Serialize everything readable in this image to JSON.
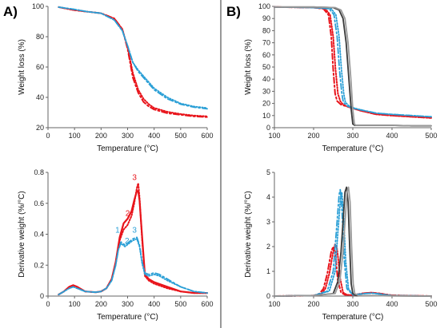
{
  "panels": [
    {
      "label": "A)"
    },
    {
      "label": "B)"
    }
  ],
  "colors": {
    "red": "#e8141b",
    "blue": "#2a9fd6",
    "black": "#3a3a3a",
    "grey": "#9a9a9a"
  },
  "chart_data": [
    {
      "type": "line",
      "panel": "A)",
      "xlabel": "Temperature (°C)",
      "ylabel": "Weight loss (%)",
      "xlim": [
        0,
        600
      ],
      "ylim": [
        20,
        100
      ],
      "xticks": [
        0,
        100,
        200,
        300,
        400,
        500,
        600
      ],
      "yticks": [
        20,
        40,
        60,
        80,
        100
      ],
      "series": [
        {
          "style": "red-dashdot",
          "x": [
            40,
            100,
            150,
            200,
            250,
            280,
            300,
            320,
            340,
            360,
            380,
            400,
            450,
            500,
            550,
            600
          ],
          "y": [
            99.5,
            97.5,
            96.5,
            95.5,
            92,
            85,
            72,
            53,
            43,
            37,
            34,
            32,
            29.5,
            28.5,
            27.5,
            27
          ]
        },
        {
          "style": "red-dotted",
          "x": [
            40,
            100,
            150,
            200,
            250,
            280,
            300,
            320,
            340,
            360,
            380,
            400,
            450,
            500,
            550,
            600
          ],
          "y": [
            99.5,
            97.5,
            96.5,
            95.5,
            92,
            85,
            73,
            56,
            45,
            39,
            35.5,
            33,
            30.5,
            29,
            28,
            27.5
          ]
        },
        {
          "style": "blue-dashdot",
          "x": [
            40,
            100,
            150,
            200,
            250,
            280,
            300,
            320,
            340,
            360,
            380,
            400,
            450,
            500,
            550,
            600
          ],
          "y": [
            99.5,
            98,
            96.5,
            95.5,
            91,
            84,
            74,
            63,
            57,
            53,
            49,
            45,
            39,
            35.5,
            33.5,
            32.5
          ]
        },
        {
          "style": "blue-dotted",
          "x": [
            40,
            100,
            150,
            200,
            250,
            280,
            300,
            320,
            340,
            360,
            380,
            400,
            450,
            500,
            550,
            600
          ],
          "y": [
            99.5,
            98,
            96.5,
            95.5,
            91,
            84,
            74,
            63,
            58,
            54,
            50,
            46,
            40,
            36,
            34,
            33
          ]
        }
      ]
    },
    {
      "type": "line",
      "panel": "A)",
      "xlabel": "Temperature (°C)",
      "ylabel": "Derivative weight (%/°C)",
      "xlim": [
        0,
        600
      ],
      "ylim": [
        0,
        0.8
      ],
      "xticks": [
        0,
        100,
        200,
        300,
        400,
        500,
        600
      ],
      "yticks": [
        0,
        0.2,
        0.4,
        0.6,
        0.8
      ],
      "annotations": [
        {
          "text": "1",
          "x": 262,
          "y": 0.41,
          "color": "blue"
        },
        {
          "text": "2",
          "x": 298,
          "y": 0.34,
          "color": "blue"
        },
        {
          "text": "3",
          "x": 326,
          "y": 0.41,
          "color": "blue"
        },
        {
          "text": "2",
          "x": 300,
          "y": 0.52,
          "color": "red"
        },
        {
          "text": "3",
          "x": 326,
          "y": 0.75,
          "color": "red"
        }
      ],
      "series": [
        {
          "style": "red-solid",
          "x": [
            40,
            60,
            80,
            95,
            110,
            140,
            180,
            200,
            220,
            240,
            255,
            270,
            285,
            300,
            315,
            325,
            335,
            340,
            345,
            355,
            365,
            380,
            400,
            450,
            500,
            550,
            600
          ],
          "y": [
            0.01,
            0.03,
            0.06,
            0.07,
            0.06,
            0.03,
            0.025,
            0.03,
            0.05,
            0.11,
            0.22,
            0.38,
            0.47,
            0.5,
            0.55,
            0.62,
            0.68,
            0.68,
            0.62,
            0.38,
            0.14,
            0.11,
            0.09,
            0.06,
            0.03,
            0.02,
            0.02
          ]
        },
        {
          "style": "red-dotted",
          "x": [
            40,
            60,
            80,
            95,
            110,
            140,
            180,
            200,
            220,
            240,
            255,
            270,
            285,
            300,
            315,
            325,
            335,
            340,
            345,
            355,
            365,
            380,
            400,
            450,
            500,
            550,
            600
          ],
          "y": [
            0.01,
            0.03,
            0.06,
            0.07,
            0.06,
            0.03,
            0.025,
            0.03,
            0.05,
            0.11,
            0.21,
            0.36,
            0.43,
            0.46,
            0.52,
            0.6,
            0.7,
            0.73,
            0.64,
            0.36,
            0.13,
            0.1,
            0.08,
            0.05,
            0.03,
            0.02,
            0.02
          ]
        },
        {
          "style": "blue-dashdot",
          "x": [
            40,
            60,
            80,
            95,
            110,
            140,
            180,
            200,
            220,
            240,
            255,
            265,
            275,
            290,
            305,
            320,
            335,
            345,
            355,
            365,
            380,
            400,
            420,
            450,
            500,
            550,
            600
          ],
          "y": [
            0.01,
            0.03,
            0.05,
            0.06,
            0.05,
            0.03,
            0.025,
            0.03,
            0.05,
            0.1,
            0.2,
            0.3,
            0.35,
            0.33,
            0.35,
            0.37,
            0.38,
            0.33,
            0.22,
            0.15,
            0.14,
            0.15,
            0.14,
            0.11,
            0.06,
            0.03,
            0.02
          ]
        },
        {
          "style": "blue-dotted",
          "x": [
            40,
            60,
            80,
            95,
            110,
            140,
            180,
            200,
            220,
            240,
            255,
            265,
            275,
            290,
            305,
            320,
            335,
            345,
            355,
            365,
            380,
            400,
            420,
            450,
            500,
            550,
            600
          ],
          "y": [
            0.01,
            0.03,
            0.05,
            0.06,
            0.05,
            0.03,
            0.025,
            0.03,
            0.05,
            0.1,
            0.2,
            0.3,
            0.34,
            0.32,
            0.34,
            0.36,
            0.37,
            0.32,
            0.21,
            0.14,
            0.13,
            0.14,
            0.13,
            0.1,
            0.06,
            0.03,
            0.02
          ]
        }
      ]
    },
    {
      "type": "line",
      "panel": "B)",
      "xlabel": "Temperature (°C)",
      "ylabel": "Weight loss (%)",
      "xlim": [
        100,
        500
      ],
      "ylim": [
        0,
        100
      ],
      "xticks": [
        100,
        200,
        300,
        400,
        500
      ],
      "yticks": [
        0,
        10,
        20,
        30,
        40,
        50,
        60,
        70,
        80,
        90,
        100
      ],
      "series": [
        {
          "style": "red-dashdot",
          "x": [
            100,
            200,
            225,
            238,
            245,
            250,
            255,
            260,
            270,
            290,
            320,
            360,
            400,
            450,
            500
          ],
          "y": [
            99.5,
            99,
            98,
            93,
            75,
            48,
            28,
            22,
            19,
            17,
            14,
            11,
            10,
            9,
            8
          ]
        },
        {
          "style": "red-dotted",
          "x": [
            100,
            200,
            230,
            242,
            250,
            256,
            262,
            268,
            275,
            290,
            320,
            360,
            400,
            450,
            500
          ],
          "y": [
            99.5,
            99,
            98,
            93,
            75,
            48,
            28,
            22,
            19,
            17,
            14,
            11,
            10,
            9,
            8
          ]
        },
        {
          "style": "blue-dashdot",
          "x": [
            100,
            200,
            240,
            252,
            260,
            266,
            272,
            276,
            285,
            300,
            330,
            360,
            400,
            450,
            500
          ],
          "y": [
            99.5,
            99,
            98,
            93,
            75,
            48,
            28,
            21,
            18,
            16,
            14,
            12,
            11,
            10,
            9
          ]
        },
        {
          "style": "blue-dotted",
          "x": [
            100,
            200,
            245,
            257,
            265,
            271,
            277,
            281,
            290,
            305,
            330,
            360,
            400,
            450,
            500
          ],
          "y": [
            99.5,
            99,
            98,
            93,
            75,
            48,
            28,
            21,
            18,
            16,
            14,
            12,
            11,
            10,
            9
          ]
        },
        {
          "style": "black-solid",
          "x": [
            100,
            200,
            250,
            265,
            275,
            283,
            290,
            296,
            300,
            305,
            350,
            400,
            450,
            500
          ],
          "y": [
            99.5,
            99.5,
            99,
            97,
            90,
            70,
            40,
            15,
            3,
            2,
            2,
            2,
            1.5,
            1.5
          ]
        },
        {
          "style": "grey-solid",
          "x": [
            100,
            200,
            255,
            270,
            280,
            288,
            295,
            300,
            304,
            308,
            350,
            400,
            450,
            500
          ],
          "y": [
            99.5,
            99.5,
            99,
            97,
            90,
            70,
            40,
            15,
            3,
            2,
            2,
            2,
            1.5,
            1.5
          ]
        }
      ]
    },
    {
      "type": "line",
      "panel": "B)",
      "xlabel": "Temperature (°C)",
      "ylabel": "Derivative weight (%/°C)",
      "xlim": [
        100,
        500
      ],
      "ylim": [
        0,
        5
      ],
      "xticks": [
        100,
        200,
        300,
        400,
        500
      ],
      "yticks": [
        0,
        1,
        2,
        3,
        4,
        5
      ],
      "series": [
        {
          "style": "red-dashdot",
          "x": [
            100,
            200,
            215,
            225,
            235,
            245,
            250,
            255,
            262,
            270,
            280,
            300,
            330,
            350,
            370,
            400,
            500
          ],
          "y": [
            0,
            0.02,
            0.1,
            0.3,
            0.9,
            1.8,
            2.0,
            1.8,
            0.6,
            0.15,
            0.05,
            0.04,
            0.12,
            0.14,
            0.1,
            0.03,
            0
          ]
        },
        {
          "style": "red-dotted",
          "x": [
            100,
            200,
            220,
            230,
            240,
            250,
            255,
            260,
            268,
            275,
            285,
            300,
            330,
            350,
            370,
            400,
            500
          ],
          "y": [
            0,
            0.02,
            0.1,
            0.3,
            0.9,
            1.8,
            2.1,
            1.9,
            0.7,
            0.15,
            0.05,
            0.04,
            0.12,
            0.14,
            0.1,
            0.03,
            0
          ]
        },
        {
          "style": "blue-dashdot",
          "x": [
            100,
            200,
            235,
            250,
            258,
            265,
            268,
            272,
            278,
            285,
            300,
            330,
            350,
            370,
            400,
            500
          ],
          "y": [
            0,
            0.02,
            0.2,
            1.0,
            2.6,
            4.1,
            4.3,
            3.6,
            1.5,
            0.3,
            0.05,
            0.1,
            0.12,
            0.08,
            0.02,
            0
          ]
        },
        {
          "style": "blue-dotted",
          "x": [
            100,
            200,
            240,
            255,
            262,
            269,
            272,
            276,
            282,
            289,
            300,
            330,
            350,
            370,
            400,
            500
          ],
          "y": [
            0,
            0.02,
            0.2,
            1.0,
            2.6,
            4.0,
            4.2,
            3.4,
            1.4,
            0.3,
            0.05,
            0.1,
            0.12,
            0.08,
            0.02,
            0
          ]
        },
        {
          "style": "black-solid",
          "x": [
            100,
            200,
            250,
            262,
            270,
            276,
            280,
            284,
            288,
            292,
            296,
            300,
            310,
            500
          ],
          "y": [
            0,
            0.02,
            0.1,
            0.6,
            1.8,
            3.2,
            4.2,
            4.4,
            3.8,
            2.0,
            0.5,
            0.1,
            0.02,
            0
          ]
        },
        {
          "style": "grey-solid",
          "x": [
            100,
            200,
            255,
            267,
            275,
            281,
            285,
            289,
            293,
            297,
            301,
            305,
            315,
            500
          ],
          "y": [
            0,
            0.02,
            0.1,
            0.6,
            1.8,
            3.2,
            4.2,
            4.4,
            3.8,
            2.0,
            0.5,
            0.1,
            0.02,
            0
          ]
        }
      ]
    }
  ]
}
